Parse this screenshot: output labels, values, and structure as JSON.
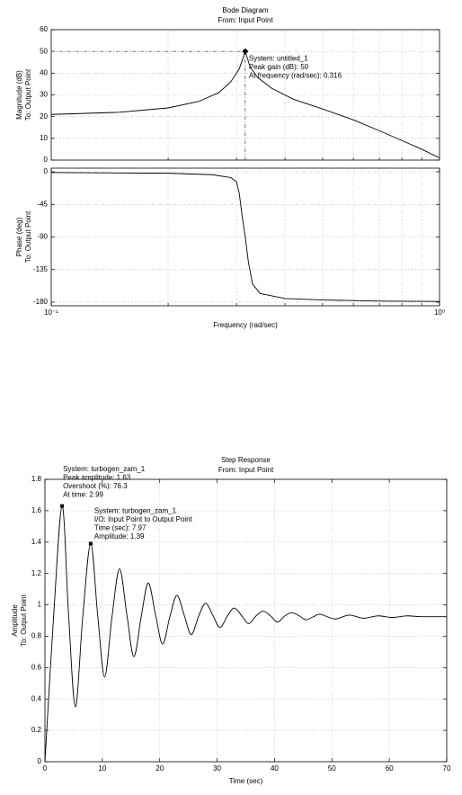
{
  "chart_data": [
    {
      "type": "line",
      "title": "Bode Diagram",
      "subtitle": "From: Input Point",
      "ylabel": [
        "Magnitude (dB)",
        "To: Output Point"
      ],
      "xscale": "log",
      "xlim": [
        0.1,
        1
      ],
      "ylim": [
        0,
        60
      ],
      "yticks": [
        0,
        10,
        20,
        30,
        40,
        50,
        60
      ],
      "grid": true,
      "color": "#000000",
      "x": [
        0.1,
        0.15,
        0.2,
        0.24,
        0.27,
        0.29,
        0.305,
        0.316,
        0.325,
        0.34,
        0.37,
        0.42,
        0.5,
        0.6,
        0.7,
        0.8,
        0.9,
        1
      ],
      "values": [
        21,
        22,
        24,
        27,
        31,
        36,
        42,
        50,
        43,
        38,
        33,
        28,
        23.5,
        18.5,
        13.5,
        9,
        5,
        1
      ],
      "datatips": [
        {
          "x": 0.316,
          "y": 50,
          "lines": [
            "System: untitled_1",
            "Peak gain (dB): 50",
            "At frequency (rad/sec): 0.316"
          ]
        }
      ]
    },
    {
      "type": "line",
      "ylabel": [
        "Phase (deg)",
        "To: Output Point"
      ],
      "xlabel": "Frequency (rad/sec)",
      "xscale": "log",
      "xlim": [
        0.1,
        1
      ],
      "xticks": [
        {
          "value": 0.1,
          "label": "10⁻¹"
        },
        {
          "value": 1,
          "label": "10⁰"
        }
      ],
      "ylim": [
        -185,
        5
      ],
      "yticks": [
        0,
        -45,
        -90,
        -135,
        -180
      ],
      "grid": true,
      "color": "#000000",
      "x": [
        0.1,
        0.2,
        0.26,
        0.29,
        0.3,
        0.305,
        0.31,
        0.316,
        0.322,
        0.33,
        0.345,
        0.4,
        0.5,
        0.7,
        1
      ],
      "values": [
        -1,
        -2,
        -4,
        -8,
        -14,
        -30,
        -60,
        -90,
        -125,
        -155,
        -168,
        -175,
        -177,
        -178.5,
        -179
      ]
    },
    {
      "type": "line",
      "title": "Step Response",
      "subtitle": "From: Input Point",
      "ylabel": [
        "Amplitude",
        "To: Output Point"
      ],
      "xlabel": "Time (sec)",
      "xlim": [
        0,
        70
      ],
      "xticks": [
        0,
        10,
        20,
        30,
        40,
        50,
        60,
        70
      ],
      "ylim": [
        0,
        1.8
      ],
      "yticks": [
        0,
        0.2,
        0.4,
        0.6,
        0.8,
        1,
        1.2,
        1.4,
        1.6,
        1.8
      ],
      "grid": true,
      "color": "#000000",
      "x": [
        0,
        1.5,
        2.99,
        4.1,
        5.3,
        6.6,
        7.97,
        9.2,
        10.4,
        11.7,
        13,
        14.3,
        15.5,
        16.8,
        18,
        19.3,
        20.5,
        21.8,
        23,
        24.3,
        25.5,
        26.8,
        28,
        29.3,
        30.5,
        31.8,
        33,
        34.3,
        35.5,
        36.8,
        38,
        39.3,
        40.5,
        41.8,
        43,
        44.3,
        45.5,
        46.8,
        48,
        50.5,
        53,
        55.5,
        58,
        60.5,
        63,
        65.5,
        70
      ],
      "values": [
        0,
        0.92,
        1.63,
        0.95,
        0.35,
        0.93,
        1.39,
        0.93,
        0.54,
        0.93,
        1.23,
        0.93,
        0.67,
        0.93,
        1.14,
        0.93,
        0.75,
        0.93,
        1.06,
        0.93,
        0.81,
        0.93,
        1.01,
        0.93,
        0.855,
        0.93,
        0.98,
        0.93,
        0.88,
        0.93,
        0.96,
        0.93,
        0.89,
        0.93,
        0.95,
        0.93,
        0.905,
        0.925,
        0.94,
        0.91,
        0.935,
        0.915,
        0.93,
        0.92,
        0.93,
        0.925,
        0.925
      ],
      "datatips": [
        {
          "x": 2.99,
          "y": 1.63,
          "lines": [
            "System: turbogen_zam_1",
            "Peak amplitude: 1.63",
            "Overshoot (%): 76.3",
            "At time: 2.99"
          ]
        },
        {
          "x": 7.97,
          "y": 1.39,
          "lines": [
            "System: turbogen_zam_1",
            "I/O: Input Point to Output Point",
            "Time (sec): 7.97",
            "Amplitude: 1.39"
          ]
        }
      ]
    }
  ]
}
